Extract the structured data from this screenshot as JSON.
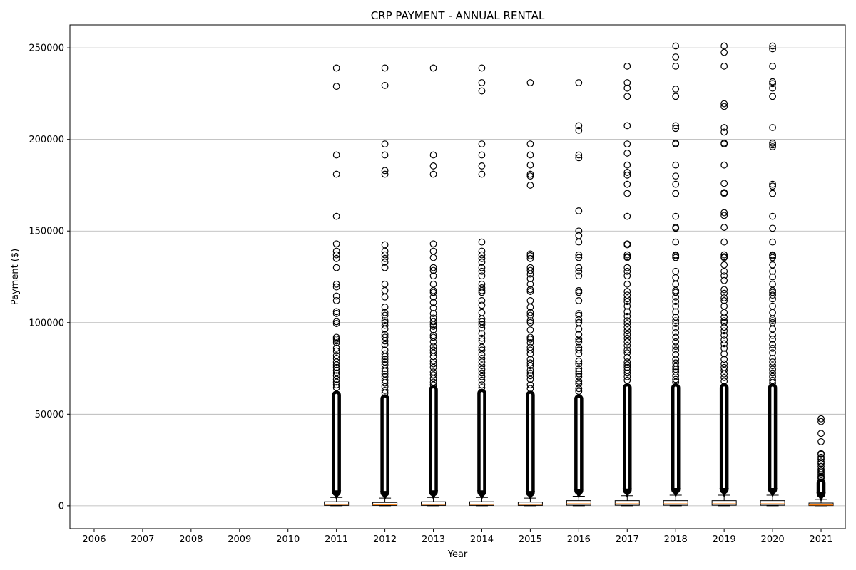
{
  "chart_data": {
    "type": "boxplot",
    "title": "CRP PAYMENT - ANNUAL RENTAL",
    "xlabel": "Year",
    "ylabel": "Payment ($)",
    "categories": [
      "2006",
      "2007",
      "2008",
      "2009",
      "2010",
      "2011",
      "2012",
      "2013",
      "2014",
      "2015",
      "2016",
      "2017",
      "2018",
      "2019",
      "2020",
      "2021"
    ],
    "ylim": [
      -12500,
      262500
    ],
    "yticks": [
      0,
      50000,
      100000,
      150000,
      200000,
      250000
    ],
    "ytick_labels": [
      "0",
      "50000",
      "100000",
      "150000",
      "200000",
      "250000"
    ],
    "grid": "y",
    "colors": {
      "box": "#000000",
      "median": "#ff7f0e",
      "grid": "#b0b0b0",
      "flier": "#000000"
    },
    "boxes": [
      {
        "year": "2006",
        "q1": null,
        "median": null,
        "q3": null,
        "whisker_low": null,
        "whisker_high": null,
        "dense_fliers_top": null,
        "fliers": []
      },
      {
        "year": "2007",
        "q1": null,
        "median": null,
        "q3": null,
        "whisker_low": null,
        "whisker_high": null,
        "dense_fliers_top": null,
        "fliers": []
      },
      {
        "year": "2008",
        "q1": null,
        "median": null,
        "q3": null,
        "whisker_low": null,
        "whisker_high": null,
        "dense_fliers_top": null,
        "fliers": []
      },
      {
        "year": "2009",
        "q1": null,
        "median": null,
        "q3": null,
        "whisker_low": null,
        "whisker_high": null,
        "dense_fliers_top": null,
        "fliers": []
      },
      {
        "year": "2010",
        "q1": null,
        "median": null,
        "q3": null,
        "whisker_low": null,
        "whisker_high": null,
        "dense_fliers_top": null,
        "fliers": []
      },
      {
        "year": "2011",
        "q1": 200,
        "median": 800,
        "q3": 2200,
        "whisker_low": 0,
        "whisker_high": 4500,
        "dense_fliers_top": 62000,
        "fliers": [
          239000,
          229000,
          191500,
          181000,
          158000,
          143000,
          139000,
          137000,
          135000,
          130000,
          121000,
          119500,
          114500,
          112000,
          106000,
          105000,
          100500,
          99500,
          92000,
          91000,
          90000,
          89000,
          86000,
          84500,
          82000,
          80500,
          78500,
          77000,
          75500,
          74000,
          72500,
          71000,
          69000,
          67500,
          66000,
          64500
        ]
      },
      {
        "year": "2012",
        "q1": 200,
        "median": 700,
        "q3": 1800,
        "whisker_low": 0,
        "whisker_high": 4200,
        "dense_fliers_top": 60000,
        "fliers": [
          239000,
          229500,
          197500,
          191500,
          183000,
          181000,
          142500,
          139000,
          137000,
          135000,
          133000,
          130000,
          121000,
          117500,
          114000,
          108500,
          105500,
          104000,
          101000,
          100000,
          98500,
          96500,
          93500,
          92000,
          90000,
          88000,
          85000,
          83000,
          81500,
          80000,
          78500,
          77000,
          75000,
          73500,
          72000,
          70500,
          68500,
          67000,
          65000,
          63000,
          61500
        ]
      },
      {
        "year": "2013",
        "q1": 200,
        "median": 800,
        "q3": 2200,
        "whisker_low": 0,
        "whisker_high": 4500,
        "dense_fliers_top": 65000,
        "fliers": [
          239000,
          191500,
          185500,
          181000,
          143000,
          139000,
          135500,
          130000,
          128500,
          125500,
          121000,
          117500,
          116500,
          114000,
          111000,
          108000,
          105000,
          102500,
          100500,
          99000,
          98000,
          96000,
          93000,
          92000,
          89500,
          87000,
          85000,
          83500,
          81500,
          79000,
          77500,
          75500,
          73000,
          71500,
          69500,
          67500,
          66000
        ]
      },
      {
        "year": "2014",
        "q1": 200,
        "median": 800,
        "q3": 2200,
        "whisker_low": 0,
        "whisker_high": 4500,
        "dense_fliers_top": 63000,
        "fliers": [
          239000,
          231000,
          226500,
          197500,
          191500,
          185500,
          181000,
          144000,
          139000,
          137000,
          135000,
          133000,
          130000,
          128000,
          125500,
          121000,
          119000,
          117500,
          116500,
          112000,
          109500,
          105500,
          102000,
          100500,
          99000,
          97000,
          94000,
          91500,
          90000,
          86500,
          85000,
          82500,
          80500,
          78500,
          76500,
          74500,
          72500,
          70500,
          68500,
          66000,
          64500
        ]
      },
      {
        "year": "2015",
        "q1": 200,
        "median": 800,
        "q3": 2000,
        "whisker_low": 0,
        "whisker_high": 4200,
        "dense_fliers_top": 62000,
        "fliers": [
          231000,
          197500,
          191500,
          186000,
          181000,
          180000,
          175000,
          137500,
          136500,
          135000,
          130000,
          128500,
          126500,
          124000,
          121000,
          118000,
          117000,
          112000,
          108500,
          105500,
          104000,
          101000,
          100000,
          96000,
          92000,
          91000,
          89000,
          86500,
          85000,
          83000,
          80000,
          78000,
          76500,
          74000,
          72500,
          71000,
          69000,
          66000,
          64000
        ]
      },
      {
        "year": "2016",
        "q1": 300,
        "median": 1000,
        "q3": 2800,
        "whisker_low": 0,
        "whisker_high": 5200,
        "dense_fliers_top": 60000,
        "fliers": [
          231000,
          207500,
          205000,
          191500,
          190000,
          161000,
          150000,
          147500,
          144000,
          137000,
          135500,
          130000,
          128000,
          125500,
          117500,
          116500,
          112000,
          105000,
          104000,
          101500,
          100000,
          96500,
          93500,
          91000,
          89500,
          86500,
          85000,
          83000,
          79000,
          77500,
          75000,
          73500,
          72000,
          70500,
          68000,
          66500,
          64000,
          62500
        ]
      },
      {
        "year": "2017",
        "q1": 300,
        "median": 1000,
        "q3": 2800,
        "whisker_low": 0,
        "whisker_high": 5500,
        "dense_fliers_top": 66000,
        "fliers": [
          240000,
          231000,
          228000,
          223500,
          207500,
          197500,
          192500,
          186000,
          182000,
          180500,
          175500,
          170500,
          158000,
          143000,
          142500,
          137000,
          136000,
          135500,
          130000,
          128000,
          125500,
          121000,
          117000,
          115000,
          113000,
          111500,
          109000,
          106000,
          103500,
          101000,
          99500,
          97500,
          95500,
          93500,
          91500,
          89500,
          87500,
          85000,
          83500,
          81000,
          78500,
          77000,
          75500,
          74000,
          72500,
          70500,
          68500
        ]
      },
      {
        "year": "2018",
        "q1": 300,
        "median": 1000,
        "q3": 2800,
        "whisker_low": 0,
        "whisker_high": 5800,
        "dense_fliers_top": 66000,
        "fliers": [
          251000,
          245000,
          240000,
          227500,
          223500,
          207500,
          206000,
          198000,
          197500,
          186000,
          180000,
          175500,
          170500,
          158000,
          152000,
          151500,
          144000,
          137000,
          136500,
          135500,
          128000,
          124500,
          121000,
          117500,
          116500,
          114000,
          111500,
          109000,
          106000,
          103000,
          101000,
          99500,
          97000,
          94500,
          92000,
          89500,
          87000,
          85000,
          82500,
          80000,
          78000,
          76000,
          74500,
          73000,
          71000,
          69000,
          67500
        ]
      },
      {
        "year": "2019",
        "q1": 300,
        "median": 1000,
        "q3": 2800,
        "whisker_low": 0,
        "whisker_high": 5800,
        "dense_fliers_top": 66000,
        "fliers": [
          251000,
          247500,
          240000,
          219500,
          218000,
          206500,
          204000,
          198000,
          197500,
          186000,
          176000,
          171000,
          170500,
          160000,
          158500,
          152000,
          144000,
          137000,
          136000,
          135500,
          131500,
          128000,
          125500,
          123000,
          118000,
          116000,
          113500,
          112000,
          109000,
          105500,
          103000,
          101000,
          100000,
          97500,
          95500,
          93000,
          90500,
          88500,
          86000,
          83000,
          80000,
          77500,
          75500,
          74000,
          72000,
          70000,
          68000
        ]
      },
      {
        "year": "2020",
        "q1": 300,
        "median": 1000,
        "q3": 2800,
        "whisker_low": 0,
        "whisker_high": 5800,
        "dense_fliers_top": 66000,
        "fliers": [
          251000,
          249500,
          240000,
          231500,
          230500,
          228000,
          223500,
          206500,
          198000,
          197000,
          196000,
          175500,
          174500,
          170500,
          158000,
          151500,
          144000,
          137000,
          136500,
          135500,
          131500,
          128000,
          125000,
          121000,
          117500,
          116500,
          115000,
          113000,
          109000,
          105500,
          102000,
          101000,
          100000,
          96500,
          93000,
          91000,
          88000,
          86000,
          83500,
          80500,
          78500,
          76500,
          74500,
          72500,
          70500,
          68500,
          67000
        ]
      },
      {
        "year": "2021",
        "q1": 100,
        "median": 500,
        "q3": 1500,
        "whisker_low": 0,
        "whisker_high": 3500,
        "dense_fliers_top": 14000,
        "fliers": [
          47500,
          46000,
          39500,
          35000,
          28500,
          28000,
          26500,
          25500,
          24000,
          23000,
          21500,
          20000,
          19000,
          18000,
          17000,
          16000,
          15500,
          15000
        ]
      }
    ]
  }
}
